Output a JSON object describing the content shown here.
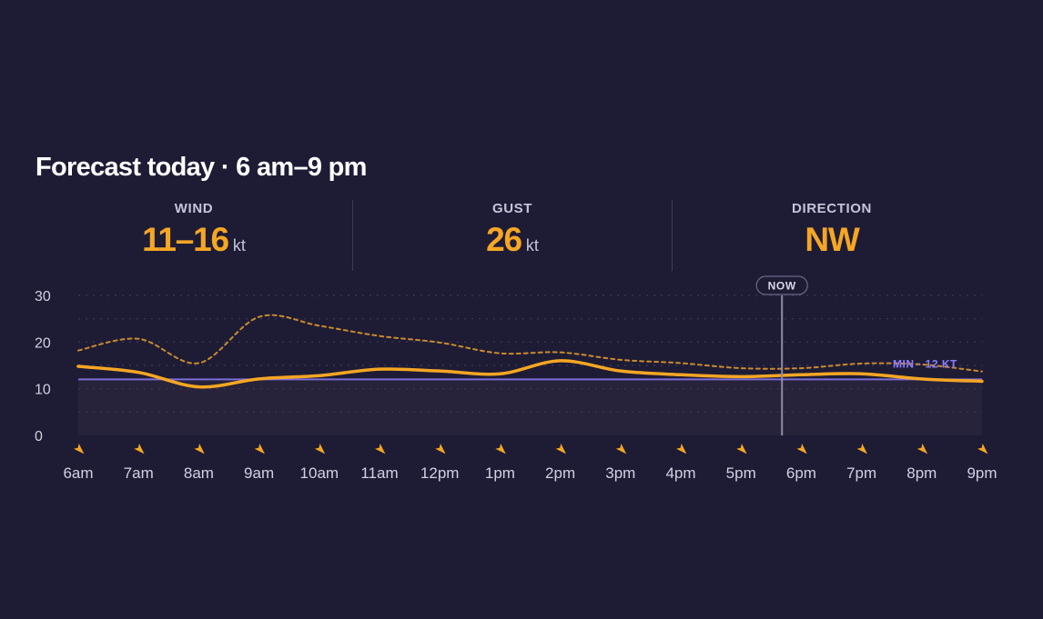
{
  "title": "Forecast today · 6 am–9 pm",
  "stats": {
    "wind": {
      "label": "WIND",
      "value": "11–16",
      "unit": "kt"
    },
    "gust": {
      "label": "GUST",
      "value": "26",
      "unit": "kt"
    },
    "direction": {
      "label": "DIRECTION",
      "value": "NW"
    }
  },
  "colors": {
    "background": "#1e1c35",
    "accent": "#f5a623",
    "min_line": "#7c6dd8",
    "gust_line": "#c98a2e",
    "text_primary": "#ffffff",
    "text_secondary": "#c6c4d8"
  },
  "chart_data": {
    "type": "line",
    "x": [
      "6am",
      "7am",
      "8am",
      "9am",
      "10am",
      "11am",
      "12pm",
      "1pm",
      "2pm",
      "3pm",
      "4pm",
      "5pm",
      "6pm",
      "7pm",
      "8pm",
      "9pm"
    ],
    "yticks": [
      "30",
      "20",
      "10",
      "0"
    ],
    "ylim": [
      0,
      30
    ],
    "grid": true,
    "series": [
      {
        "style": "solid",
        "values": [
          14.8,
          13.5,
          10.4,
          12.1,
          12.8,
          14.2,
          13.8,
          13.2,
          16.0,
          13.8,
          13.0,
          12.6,
          13.0,
          13.2,
          12.1,
          11.6
        ]
      },
      {
        "style": "dashed",
        "values": [
          18.2,
          20.7,
          15.5,
          25.4,
          23.5,
          21.3,
          19.9,
          17.6,
          17.8,
          16.2,
          15.5,
          14.4,
          14.4,
          15.4,
          15.2,
          13.7
        ]
      }
    ],
    "direction_arrows_deg": [
      135,
      135,
      135,
      135,
      135,
      135,
      135,
      135,
      135,
      135,
      135,
      135,
      135,
      135,
      135,
      135
    ],
    "min_line": {
      "value": 12,
      "label": "MIN · 12 KT"
    },
    "now_marker": {
      "x": "5.7pm",
      "position_hours_after_6am": 11.68,
      "label": "NOW"
    }
  }
}
